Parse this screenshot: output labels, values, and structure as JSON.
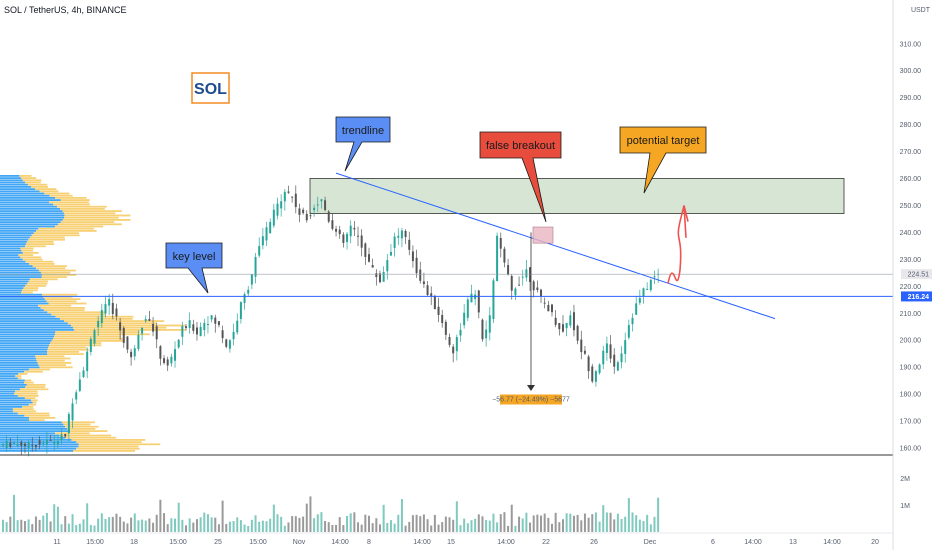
{
  "header": {
    "symbol_title": "SOL / TetherUS, 4h, BINANCE",
    "currency": "USDT"
  },
  "logo_label": "SOL",
  "annotations": {
    "trendline": "trendline",
    "key_level": "key level",
    "false_breakout": "false breakout",
    "potential_target": "potential target",
    "measure": "−56.77 (−24.49%) −5677"
  },
  "price_tags": {
    "current": "224.51",
    "key_level": "216.24"
  },
  "colors": {
    "up": "#26a69a",
    "down": "#555555",
    "trendline": "#2962ff",
    "zone_fill": "#c8dcc5",
    "callout_blue": "#5b8ef5",
    "callout_red": "#e74c3c",
    "callout_orange": "#f5a623",
    "profile_blue": "#2196f3",
    "profile_yellow": "#f5c85a",
    "target_arrow": "#ef5350"
  },
  "chart_data": {
    "type": "candlestick",
    "price_axis": {
      "ticks": [
        "310.00",
        "300.00",
        "290.00",
        "280.00",
        "270.00",
        "260.00",
        "250.00",
        "240.00",
        "230.00",
        "220.00",
        "210.00",
        "200.00",
        "190.00",
        "180.00",
        "170.00",
        "160.00"
      ],
      "range": [
        156,
        320
      ]
    },
    "time_axis": [
      "11",
      "15:00",
      "18",
      "15:00",
      "25",
      "15:00",
      "Nov",
      "14:00",
      "8",
      "14:00",
      "15",
      "14:00",
      "22",
      "26",
      "Dec",
      "6",
      "14:00",
      "13",
      "14:00",
      "20"
    ],
    "volume_axis": [
      "2M",
      "1M"
    ],
    "horizontal_levels": [
      {
        "label": "key level",
        "value": 216.24
      },
      {
        "label": "current",
        "value": 224.51
      }
    ],
    "resistance_zone": {
      "low": 247,
      "high": 260
    },
    "price_path": [
      [
        0,
        161
      ],
      [
        4,
        162
      ],
      [
        8,
        161
      ],
      [
        12,
        162
      ],
      [
        16,
        163
      ],
      [
        18,
        165
      ],
      [
        20,
        178
      ],
      [
        23,
        190
      ],
      [
        26,
        205
      ],
      [
        28,
        210
      ],
      [
        30,
        214
      ],
      [
        32,
        208
      ],
      [
        34,
        200
      ],
      [
        36,
        193
      ],
      [
        38,
        203
      ],
      [
        40,
        209
      ],
      [
        42,
        204
      ],
      [
        44,
        194
      ],
      [
        46,
        190
      ],
      [
        48,
        197
      ],
      [
        50,
        204
      ],
      [
        52,
        206
      ],
      [
        54,
        203
      ],
      [
        56,
        207
      ],
      [
        58,
        208
      ],
      [
        60,
        205
      ],
      [
        62,
        198
      ],
      [
        64,
        203
      ],
      [
        66,
        213
      ],
      [
        68,
        220
      ],
      [
        70,
        230
      ],
      [
        72,
        238
      ],
      [
        74,
        244
      ],
      [
        76,
        250
      ],
      [
        78,
        256
      ],
      [
        80,
        253
      ],
      [
        82,
        247
      ],
      [
        84,
        245
      ],
      [
        86,
        250
      ],
      [
        88,
        252
      ],
      [
        90,
        245
      ],
      [
        92,
        240
      ],
      [
        94,
        236
      ],
      [
        96,
        242
      ],
      [
        98,
        238
      ],
      [
        100,
        232
      ],
      [
        102,
        226
      ],
      [
        104,
        222
      ],
      [
        106,
        230
      ],
      [
        108,
        238
      ],
      [
        110,
        240
      ],
      [
        112,
        234
      ],
      [
        114,
        226
      ],
      [
        116,
        220
      ],
      [
        118,
        215
      ],
      [
        120,
        210
      ],
      [
        122,
        202
      ],
      [
        124,
        196
      ],
      [
        126,
        205
      ],
      [
        128,
        214
      ],
      [
        130,
        218
      ],
      [
        132,
        200
      ],
      [
        134,
        208
      ],
      [
        136,
        238
      ],
      [
        138,
        228
      ],
      [
        140,
        218
      ],
      [
        142,
        222
      ],
      [
        144,
        226
      ],
      [
        146,
        220
      ],
      [
        148,
        215
      ],
      [
        150,
        212
      ],
      [
        152,
        207
      ],
      [
        154,
        203
      ],
      [
        156,
        210
      ],
      [
        158,
        199
      ],
      [
        160,
        194
      ],
      [
        162,
        186
      ],
      [
        164,
        192
      ],
      [
        166,
        198
      ],
      [
        168,
        190
      ],
      [
        170,
        196
      ],
      [
        172,
        206
      ],
      [
        174,
        213
      ],
      [
        176,
        218
      ],
      [
        178,
        222
      ],
      [
        180,
        224.5
      ]
    ]
  }
}
